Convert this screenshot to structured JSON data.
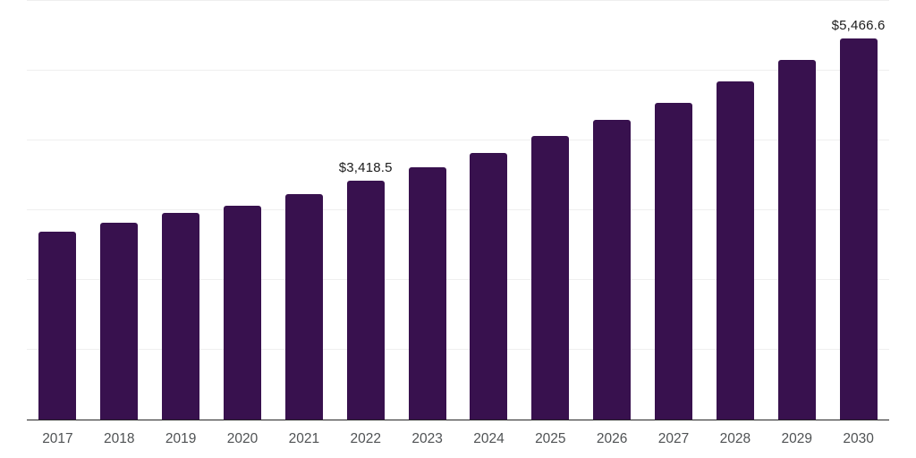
{
  "chart_data": {
    "type": "bar",
    "title": "",
    "xlabel": "",
    "ylabel": "",
    "categories": [
      "2017",
      "2018",
      "2019",
      "2020",
      "2021",
      "2022",
      "2023",
      "2024",
      "2025",
      "2026",
      "2027",
      "2028",
      "2029",
      "2030"
    ],
    "values": [
      2695,
      2820,
      2965,
      3065,
      3225,
      3418.5,
      3610,
      3815,
      4060,
      4300,
      4545,
      4845,
      5150,
      5466.6
    ],
    "data_labels": {
      "2022": "$3,418.5",
      "2030": "$5,466.6"
    },
    "ylim": [
      0,
      6000
    ],
    "gridline_step": 1000,
    "grid": "horizontal",
    "y_axis_tick_labels_visible": false,
    "legend_position": "none"
  },
  "colors": {
    "background": "#ffffff",
    "bar": "#38114e",
    "axis_line": "#262626",
    "gridline": "#efefef",
    "tick_label": "#4f5254",
    "data_label": "#1c1c1c"
  }
}
